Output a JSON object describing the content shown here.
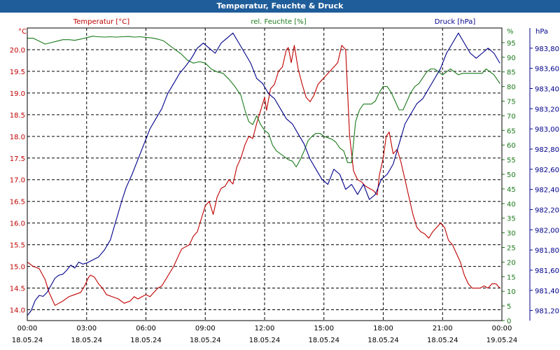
{
  "window": {
    "title": "Temperatur, Feuchte & Druck"
  },
  "colors": {
    "temperature": "#c00000",
    "humidity": "#1a7a1a",
    "pressure": "#00008b",
    "grid": "#000000",
    "titlebar": "#1f5d9a"
  },
  "chart_data": {
    "type": "line",
    "title": "Temperatur, Feuchte & Druck",
    "grid": true,
    "x": {
      "ticks": [
        {
          "hour": 0,
          "time": "00:00",
          "date": "18.05.24"
        },
        {
          "hour": 3,
          "time": "03:00",
          "date": "18.05.24"
        },
        {
          "hour": 6,
          "time": "06:00",
          "date": "18.05.24"
        },
        {
          "hour": 9,
          "time": "09:00",
          "date": "18.05.24"
        },
        {
          "hour": 12,
          "time": "12:00",
          "date": "18.05.24"
        },
        {
          "hour": 15,
          "time": "15:00",
          "date": "18.05.24"
        },
        {
          "hour": 18,
          "time": "18:00",
          "date": "18.05.24"
        },
        {
          "hour": 21,
          "time": "21:00",
          "date": "18.05.24"
        },
        {
          "hour": 24,
          "time": "00:00",
          "date": "19.05.24"
        }
      ],
      "range": [
        0,
        24
      ]
    },
    "axes": {
      "temperature": {
        "label": "Temperatur [°C]",
        "unit": "°C",
        "range": [
          13.75,
          20.5
        ],
        "ticks": [
          "14.0",
          "14.5",
          "15.0",
          "15.5",
          "16.0",
          "16.5",
          "17.0",
          "17.5",
          "18.0",
          "18.5",
          "19.0",
          "19.5",
          "20.0"
        ]
      },
      "humidity": {
        "label": "rel. Feuchte [%]",
        "unit": "%",
        "range": [
          0,
          100
        ],
        "ticks": [
          "0",
          "5",
          "10",
          "15",
          "20",
          "25",
          "30",
          "35",
          "40",
          "45",
          "50",
          "55",
          "60",
          "65",
          "70",
          "75",
          "80",
          "85",
          "90",
          "95"
        ]
      },
      "pressure": {
        "label": "Druck [hPa]",
        "unit": "hPa",
        "range": [
          981.1,
          984.0
        ],
        "ticks": [
          "981,20",
          "981,40",
          "981,60",
          "981,80",
          "982,00",
          "982,20",
          "982,40",
          "982,60",
          "982,80",
          "983,00",
          "983,20",
          "983,40",
          "983,60",
          "983,80"
        ]
      }
    },
    "series": [
      {
        "name": "Temperatur [°C]",
        "axis": "temperature",
        "color": "#c00000",
        "x": [
          0,
          0.3,
          0.6,
          0.9,
          1.1,
          1.25,
          1.4,
          1.6,
          1.8,
          2.1,
          2.4,
          2.7,
          2.9,
          3.1,
          3.2,
          3.4,
          3.6,
          3.8,
          4,
          4.3,
          4.6,
          4.9,
          5.2,
          5.4,
          5.6,
          5.8,
          6,
          6.2,
          6.4,
          6.6,
          6.8,
          7,
          7.2,
          7.4,
          7.6,
          7.8,
          8,
          8.2,
          8.4,
          8.6,
          8.8,
          9,
          9.2,
          9.4,
          9.6,
          9.8,
          10,
          10.2,
          10.4,
          10.6,
          10.8,
          11,
          11.2,
          11.4,
          11.6,
          11.8,
          12,
          12.1,
          12.3,
          12.5,
          12.7,
          12.9,
          13.1,
          13.2,
          13.35,
          13.5,
          13.7,
          13.9,
          14.1,
          14.3,
          14.5,
          14.7,
          14.9,
          15.1,
          15.3,
          15.5,
          15.7,
          15.9,
          16.1,
          16.3,
          16.5,
          16.7,
          16.9,
          17.1,
          17.3,
          17.5,
          17.7,
          17.8,
          18,
          18.15,
          18.3,
          18.5,
          18.7,
          18.9,
          19.1,
          19.3,
          19.5,
          19.7,
          19.9,
          20.1,
          20.3,
          20.5,
          20.7,
          20.9,
          21.1,
          21.3,
          21.5,
          21.7,
          21.9,
          22.1,
          22.3,
          22.5,
          22.7,
          22.9,
          23.1,
          23.3,
          23.5,
          23.7,
          23.9
        ],
        "values": [
          15.1,
          15.0,
          14.95,
          14.7,
          14.4,
          14.25,
          14.1,
          14.15,
          14.2,
          14.3,
          14.35,
          14.4,
          14.55,
          14.75,
          14.8,
          14.75,
          14.6,
          14.5,
          14.35,
          14.3,
          14.25,
          14.15,
          14.2,
          14.3,
          14.25,
          14.3,
          14.35,
          14.3,
          14.4,
          14.5,
          14.55,
          14.7,
          14.85,
          15.0,
          15.2,
          15.4,
          15.45,
          15.5,
          15.7,
          15.8,
          16.1,
          16.4,
          16.5,
          16.2,
          16.6,
          16.8,
          16.85,
          17.0,
          16.9,
          17.3,
          17.5,
          17.8,
          18.0,
          17.95,
          18.3,
          18.6,
          18.9,
          18.6,
          19.1,
          19.2,
          19.5,
          19.6,
          20.0,
          20.05,
          19.7,
          20.1,
          19.55,
          19.2,
          18.9,
          18.8,
          18.95,
          19.2,
          19.3,
          19.4,
          19.5,
          19.6,
          19.7,
          20.1,
          20.0,
          18.0,
          17.2,
          17.0,
          16.95,
          16.85,
          16.8,
          16.75,
          16.65,
          17.1,
          17.5,
          18.0,
          18.1,
          17.6,
          17.7,
          17.4,
          17.0,
          16.6,
          16.2,
          15.9,
          15.8,
          15.75,
          15.65,
          15.8,
          15.9,
          16.0,
          15.9,
          15.6,
          15.5,
          15.3,
          15.1,
          14.8,
          14.6,
          14.5,
          14.5,
          14.5,
          14.55,
          14.5,
          14.6,
          14.6,
          14.5
        ]
      },
      {
        "name": "rel. Feuchte [%]",
        "axis": "humidity",
        "color": "#1a7a1a",
        "x": [
          0,
          0.3,
          0.6,
          0.9,
          1.2,
          1.5,
          1.8,
          2.1,
          2.4,
          2.7,
          3,
          3.3,
          3.6,
          3.9,
          4.2,
          4.5,
          4.8,
          5.1,
          5.4,
          5.7,
          6,
          6.3,
          6.6,
          6.9,
          7.2,
          7.5,
          7.8,
          8.1,
          8.4,
          8.7,
          9,
          9.3,
          9.6,
          9.9,
          10.2,
          10.5,
          10.8,
          11,
          11.2,
          11.4,
          11.6,
          11.8,
          12,
          12.2,
          12.4,
          12.6,
          12.8,
          13,
          13.2,
          13.4,
          13.6,
          13.8,
          14,
          14.2,
          14.4,
          14.6,
          14.8,
          15,
          15.2,
          15.4,
          15.6,
          15.8,
          16,
          16.2,
          16.4,
          16.6,
          16.8,
          17,
          17.2,
          17.4,
          17.6,
          17.8,
          18,
          18.2,
          18.4,
          18.6,
          18.8,
          19,
          19.2,
          19.4,
          19.6,
          19.8,
          20,
          20.2,
          20.4,
          20.6,
          20.8,
          21,
          21.2,
          21.4,
          21.6,
          21.8,
          22,
          22.2,
          22.4,
          22.6,
          22.8,
          23,
          23.2,
          23.4,
          23.6,
          23.8,
          23.9
        ],
        "values": [
          96.5,
          96.5,
          95.5,
          94.5,
          95,
          95.5,
          96,
          96,
          95.8,
          96.2,
          96.7,
          97.2,
          97,
          96.9,
          97,
          96.9,
          97,
          97.1,
          96.9,
          97,
          96.8,
          96.6,
          96.2,
          95.6,
          94,
          92.5,
          91,
          89,
          88,
          88.5,
          88,
          86,
          85,
          84.5,
          82.5,
          80,
          77,
          72,
          68,
          67,
          70,
          67,
          65,
          64,
          60,
          58,
          57,
          56,
          55,
          54.5,
          52.5,
          55,
          58,
          61.5,
          63,
          64,
          64,
          63,
          62.5,
          62,
          61,
          59,
          58,
          54,
          54,
          68,
          72,
          74,
          74,
          74,
          75,
          78,
          80,
          80,
          78,
          75,
          72,
          72,
          75,
          78,
          80,
          81,
          83,
          85,
          86,
          86,
          85,
          84,
          85,
          86,
          85,
          84,
          84.5,
          84.5,
          84.5,
          84.5,
          84.5,
          84.5,
          86,
          85,
          84,
          82,
          81
        ]
      },
      {
        "name": "Druck [hPa]",
        "axis": "pressure",
        "color": "#00008b",
        "x": [
          0,
          0.2,
          0.4,
          0.6,
          0.8,
          1,
          1.2,
          1.4,
          1.6,
          1.8,
          2,
          2.2,
          2.4,
          2.6,
          2.8,
          3,
          3.3,
          3.6,
          3.9,
          4.2,
          4.5,
          4.8,
          5,
          5.3,
          5.6,
          5.9,
          6.2,
          6.5,
          6.8,
          7.1,
          7.4,
          7.7,
          8,
          8.3,
          8.6,
          8.9,
          9.2,
          9.5,
          9.8,
          10.1,
          10.4,
          10.7,
          11,
          11.3,
          11.6,
          11.9,
          12.2,
          12.5,
          12.8,
          13.1,
          13.4,
          13.7,
          14,
          14.3,
          14.6,
          14.9,
          15.2,
          15.5,
          15.8,
          16.1,
          16.4,
          16.7,
          17,
          17.3,
          17.6,
          17.9,
          18.2,
          18.5,
          18.8,
          19.1,
          19.4,
          19.7,
          20,
          20.3,
          20.6,
          20.9,
          21.2,
          21.5,
          21.8,
          22.1,
          22.4,
          22.7,
          23,
          23.3,
          23.6,
          23.9
        ],
        "values": [
          981.15,
          981.2,
          981.3,
          981.35,
          981.34,
          981.38,
          981.45,
          981.52,
          981.55,
          981.56,
          981.6,
          981.65,
          981.62,
          981.68,
          981.66,
          981.67,
          981.7,
          981.73,
          981.8,
          981.9,
          982.1,
          982.3,
          982.42,
          982.55,
          982.7,
          982.85,
          983.0,
          983.1,
          983.2,
          983.35,
          983.45,
          983.55,
          983.62,
          983.7,
          983.8,
          983.85,
          983.8,
          983.75,
          983.85,
          983.9,
          983.95,
          983.85,
          983.75,
          983.65,
          983.5,
          983.45,
          983.35,
          983.3,
          983.2,
          983.1,
          983.05,
          982.95,
          982.85,
          982.7,
          982.6,
          982.5,
          982.45,
          982.6,
          982.55,
          982.4,
          982.45,
          982.35,
          982.45,
          982.3,
          982.35,
          982.5,
          982.55,
          982.65,
          982.85,
          983.05,
          983.15,
          983.25,
          983.3,
          983.4,
          983.5,
          983.6,
          983.75,
          983.85,
          983.95,
          983.85,
          983.75,
          983.7,
          983.75,
          983.8,
          983.75,
          983.65
        ]
      }
    ]
  }
}
